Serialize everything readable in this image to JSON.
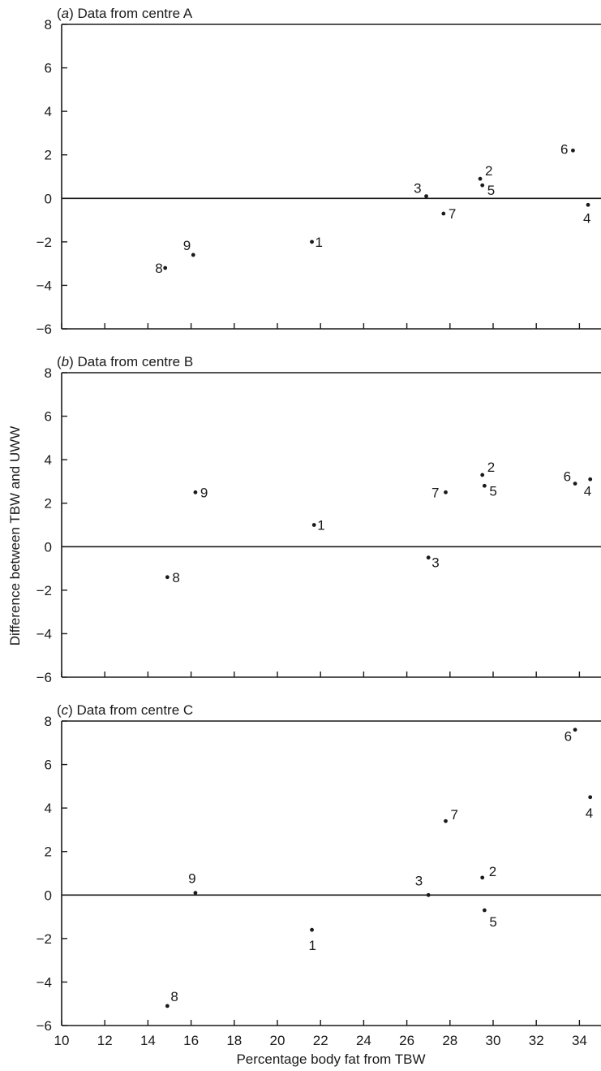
{
  "chart_data": {
    "type": "scatter",
    "ylabel": "Difference between TBW and UWW",
    "xlabel": "Percentage body fat from TBW",
    "xlim": [
      10,
      35
    ],
    "ylim": [
      -6,
      8
    ],
    "x_ticks": [
      "10",
      "12",
      "14",
      "16",
      "18",
      "20",
      "22",
      "24",
      "26",
      "28",
      "30",
      "32",
      "34"
    ],
    "y_ticks": [
      "-6",
      "-4",
      "-2",
      "0",
      "2",
      "4",
      "6",
      "8"
    ],
    "panels": [
      {
        "letter": "a",
        "title": "Data from centre A",
        "points": [
          {
            "label": "1",
            "x": 21.6,
            "y": -2.0
          },
          {
            "label": "2",
            "x": 29.4,
            "y": 0.9
          },
          {
            "label": "3",
            "x": 26.9,
            "y": 0.1
          },
          {
            "label": "4",
            "x": 34.4,
            "y": -0.3
          },
          {
            "label": "5",
            "x": 29.5,
            "y": 0.6
          },
          {
            "label": "6",
            "x": 33.7,
            "y": 2.2
          },
          {
            "label": "7",
            "x": 27.7,
            "y": -0.7
          },
          {
            "label": "8",
            "x": 14.8,
            "y": -3.2
          },
          {
            "label": "9",
            "x": 16.1,
            "y": -2.6
          }
        ]
      },
      {
        "letter": "b",
        "title": "Data from centre B",
        "points": [
          {
            "label": "1",
            "x": 21.7,
            "y": 1.0
          },
          {
            "label": "2",
            "x": 29.5,
            "y": 3.3
          },
          {
            "label": "3",
            "x": 27.0,
            "y": -0.5
          },
          {
            "label": "4",
            "x": 34.5,
            "y": 3.1
          },
          {
            "label": "5",
            "x": 29.6,
            "y": 2.8
          },
          {
            "label": "6",
            "x": 33.8,
            "y": 2.9
          },
          {
            "label": "7",
            "x": 27.8,
            "y": 2.5
          },
          {
            "label": "8",
            "x": 14.9,
            "y": -1.4
          },
          {
            "label": "9",
            "x": 16.2,
            "y": 2.5
          }
        ]
      },
      {
        "letter": "c",
        "title": "Data from centre C",
        "points": [
          {
            "label": "1",
            "x": 21.6,
            "y": -1.6
          },
          {
            "label": "2",
            "x": 29.5,
            "y": 0.8
          },
          {
            "label": "3",
            "x": 27.0,
            "y": 0.0
          },
          {
            "label": "4",
            "x": 34.5,
            "y": 4.5
          },
          {
            "label": "5",
            "x": 29.6,
            "y": -0.7
          },
          {
            "label": "6",
            "x": 33.8,
            "y": 7.6
          },
          {
            "label": "7",
            "x": 27.8,
            "y": 3.4
          },
          {
            "label": "8",
            "x": 14.9,
            "y": -5.1
          },
          {
            "label": "9",
            "x": 16.2,
            "y": 0.1
          }
        ]
      }
    ]
  }
}
